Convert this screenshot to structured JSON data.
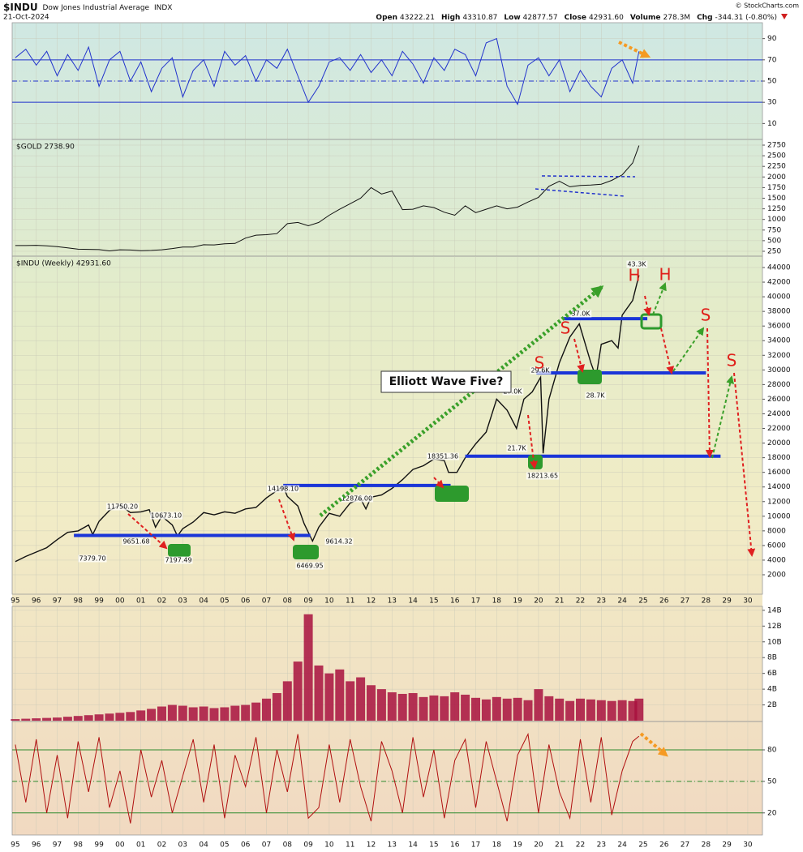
{
  "header": {
    "symbol": "$INDU",
    "name": "Dow Jones Industrial Average",
    "exchange": "INDX",
    "date": "21-Oct-2024",
    "quote": [
      {
        "label": "Open",
        "value": "43222.21"
      },
      {
        "label": "High",
        "value": "43310.87"
      },
      {
        "label": "Low",
        "value": "42877.57"
      },
      {
        "label": "Close",
        "value": "42931.60"
      },
      {
        "label": "Volume",
        "value": "278.3M"
      },
      {
        "label": "Chg",
        "value": "-344.31 (-0.80%)"
      }
    ],
    "credit": "© StockCharts.com"
  },
  "chart_data": [
    {
      "type": "line",
      "xlim": [
        1994.85,
        2030.7
      ],
      "ylim": [
        -5,
        105
      ],
      "yticks": [
        10,
        30,
        50,
        70,
        90
      ],
      "hlines": [
        30,
        50,
        70
      ],
      "hline_color": "#2233cc",
      "x": [
        1995,
        1995.5,
        1996,
        1996.5,
        1997,
        1997.5,
        1998,
        1998.5,
        1999,
        1999.5,
        2000,
        2000.5,
        2001,
        2001.5,
        2002,
        2002.5,
        2003,
        2003.5,
        2004,
        2004.5,
        2005,
        2005.5,
        2006,
        2006.5,
        2007,
        2007.5,
        2008,
        2008.5,
        2009,
        2009.5,
        2010,
        2010.5,
        2011,
        2011.5,
        2012,
        2012.5,
        2013,
        2013.5,
        2014,
        2014.5,
        2015,
        2015.5,
        2016,
        2016.5,
        2017,
        2017.5,
        2018,
        2018.5,
        2019,
        2019.5,
        2020,
        2020.5,
        2021,
        2021.5,
        2022,
        2022.5,
        2023,
        2023.5,
        2024,
        2024.5,
        2024.8
      ],
      "series": [
        {
          "color": "#2233cc",
          "values": [
            72,
            80,
            65,
            78,
            55,
            75,
            60,
            82,
            45,
            70,
            78,
            50,
            68,
            40,
            62,
            72,
            35,
            60,
            70,
            45,
            78,
            65,
            74,
            50,
            70,
            62,
            80,
            55,
            30,
            45,
            68,
            72,
            60,
            75,
            58,
            70,
            55,
            78,
            66,
            48,
            72,
            60,
            80,
            75,
            55,
            86,
            90,
            45,
            28,
            65,
            72,
            55,
            70,
            40,
            60,
            45,
            35,
            62,
            70,
            48,
            78
          ]
        }
      ]
    },
    {
      "type": "line",
      "legend": "$GOLD 2738.90",
      "xlim": [
        1994.85,
        2030.7
      ],
      "ylim": [
        135,
        2884
      ],
      "yticks": [
        250,
        500,
        750,
        1000,
        1250,
        1500,
        1750,
        2000,
        2250,
        2500,
        2750
      ],
      "x": [
        1995,
        1995.5,
        1996,
        1996.5,
        1997,
        1997.5,
        1998,
        1998.5,
        1999,
        1999.5,
        2000,
        2000.5,
        2001,
        2001.5,
        2002,
        2002.5,
        2003,
        2003.5,
        2004,
        2004.5,
        2005,
        2005.5,
        2006,
        2006.5,
        2007,
        2007.5,
        2008,
        2008.5,
        2009,
        2009.5,
        2010,
        2010.5,
        2011,
        2011.5,
        2012,
        2012.5,
        2013,
        2013.5,
        2014,
        2014.5,
        2015,
        2015.5,
        2016,
        2016.5,
        2017,
        2017.5,
        2018,
        2018.5,
        2019,
        2019.5,
        2020,
        2020.5,
        2021,
        2021.5,
        2022,
        2022.5,
        2023,
        2023.5,
        2024,
        2024.5,
        2024.8
      ],
      "series": [
        {
          "color": "#111111",
          "values": [
            385,
            385,
            390,
            380,
            360,
            330,
            300,
            295,
            290,
            260,
            285,
            280,
            265,
            270,
            285,
            315,
            350,
            350,
            405,
            400,
            425,
            435,
            560,
            630,
            640,
            665,
            900,
            930,
            850,
            930,
            1100,
            1240,
            1370,
            1500,
            1750,
            1600,
            1670,
            1230,
            1240,
            1320,
            1280,
            1170,
            1100,
            1320,
            1160,
            1240,
            1320,
            1250,
            1290,
            1410,
            1520,
            1780,
            1900,
            1770,
            1800,
            1810,
            1830,
            1920,
            2050,
            2330,
            2738.9
          ]
        }
      ]
    },
    {
      "type": "line",
      "legend": "$INDU (Weekly) 42931.60",
      "xlim": [
        1994.85,
        2030.7
      ],
      "ylim": [
        -660,
        45551
      ],
      "yticks": [
        2000,
        4000,
        6000,
        8000,
        10000,
        12000,
        14000,
        16000,
        18000,
        20000,
        22000,
        24000,
        26000,
        28000,
        30000,
        32000,
        34000,
        36000,
        38000,
        40000,
        42000,
        44000
      ],
      "xticks": [
        {
          "value": 1995,
          "label": "95"
        },
        {
          "value": 1996,
          "label": "96"
        },
        {
          "value": 1997,
          "label": "97"
        },
        {
          "value": 1998,
          "label": "98"
        },
        {
          "value": 1999,
          "label": "99"
        },
        {
          "value": 2000,
          "label": "00"
        },
        {
          "value": 2001,
          "label": "01"
        },
        {
          "value": 2002,
          "label": "02"
        },
        {
          "value": 2003,
          "label": "03"
        },
        {
          "value": 2004,
          "label": "04"
        },
        {
          "value": 2005,
          "label": "05"
        },
        {
          "value": 2006,
          "label": "06"
        },
        {
          "value": 2007,
          "label": "07"
        },
        {
          "value": 2008,
          "label": "08"
        },
        {
          "value": 2009,
          "label": "09"
        },
        {
          "value": 2010,
          "label": "10"
        },
        {
          "value": 2011,
          "label": "11"
        },
        {
          "value": 2012,
          "label": "12"
        },
        {
          "value": 2013,
          "label": "13"
        },
        {
          "value": 2014,
          "label": "14"
        },
        {
          "value": 2015,
          "label": "15"
        },
        {
          "value": 2016,
          "label": "16"
        },
        {
          "value": 2017,
          "label": "17"
        },
        {
          "value": 2018,
          "label": "18"
        },
        {
          "value": 2019,
          "label": "19"
        },
        {
          "value": 2020,
          "label": "20"
        },
        {
          "value": 2021,
          "label": "21"
        },
        {
          "value": 2022,
          "label": "22"
        },
        {
          "value": 2023,
          "label": "23"
        },
        {
          "value": 2024,
          "label": "24"
        },
        {
          "value": 2025,
          "label": "25"
        },
        {
          "value": 2026,
          "label": "26"
        },
        {
          "value": 2027,
          "label": "27"
        },
        {
          "value": 2028,
          "label": "28"
        },
        {
          "value": 2029,
          "label": "29"
        },
        {
          "value": 2030,
          "label": "30"
        }
      ],
      "grid": true,
      "x": [
        1995,
        1995.5,
        1996,
        1996.5,
        1997,
        1997.5,
        1998,
        1998.5,
        1998.7,
        1999,
        1999.5,
        2000,
        2000.5,
        2001,
        2001.4,
        2001.7,
        2002,
        2002.5,
        2002.75,
        2003,
        2003.5,
        2004,
        2004.5,
        2005,
        2005.5,
        2006,
        2006.5,
        2007,
        2007.5,
        2007.8,
        2008,
        2008.5,
        2008.8,
        2009.2,
        2009.5,
        2010,
        2010.5,
        2011,
        2011.5,
        2011.75,
        2012,
        2012.5,
        2013,
        2013.5,
        2014,
        2014.5,
        2015,
        2015.5,
        2015.7,
        2016.1,
        2016.5,
        2017,
        2017.5,
        2018,
        2018.5,
        2018.95,
        2019.3,
        2019.7,
        2020.1,
        2020.22,
        2020.5,
        2021,
        2021.5,
        2021.95,
        2022.5,
        2022.75,
        2023,
        2023.5,
        2023.8,
        2024,
        2024.5,
        2024.8
      ],
      "series": [
        {
          "color": "#111111",
          "values": [
            3800,
            4500,
            5100,
            5700,
            6800,
            7800,
            8000,
            8800,
            7500,
            9300,
            10800,
            11500,
            10500,
            10600,
            10900,
            8500,
            10000,
            8800,
            7300,
            8300,
            9200,
            10500,
            10200,
            10600,
            10400,
            11000,
            11200,
            12500,
            13500,
            14100,
            12700,
            11400,
            9000,
            6600,
            8500,
            10400,
            10000,
            11800,
            12400,
            11000,
            12600,
            12900,
            13800,
            15000,
            16400,
            16900,
            17800,
            17600,
            16000,
            16000,
            18000,
            19900,
            21500,
            26000,
            24500,
            22000,
            26000,
            27000,
            29000,
            18600,
            26000,
            31000,
            34500,
            36300,
            31000,
            29000,
            33500,
            34000,
            33000,
            37500,
            39500,
            42931.6
          ]
        }
      ],
      "levels": [
        7379.7,
        14198.1,
        18213.65,
        29600,
        37000
      ],
      "level_color": "#1a35d8",
      "point_labels": [
        "43.3K",
        "37.0K",
        "29.6K",
        "27.0K",
        "28.7K",
        "21.7K",
        "18213.65",
        "18351.36",
        "12876.00",
        "14198.10",
        "9614.32",
        "6469.95",
        "11750.20",
        "10673.10",
        "9651.68",
        "7197.49",
        "7379.70"
      ],
      "pattern_labels": [
        "H",
        "H",
        "S",
        "S",
        "S",
        "S"
      ],
      "annotation": "Elliott Wave Five?"
    },
    {
      "type": "bar",
      "xlim": [
        1994.85,
        2030.7
      ],
      "ylim": [
        -100000000.0,
        14500000000.0
      ],
      "yticks": [
        {
          "value": 2000000000.0,
          "label": "2B"
        },
        {
          "value": 4000000000.0,
          "label": "4B"
        },
        {
          "value": 6000000000.0,
          "label": "6B"
        },
        {
          "value": 8000000000.0,
          "label": "8B"
        },
        {
          "value": 10000000000.0,
          "label": "10B"
        },
        {
          "value": 12000000000.0,
          "label": "12B"
        },
        {
          "value": 14000000000.0,
          "label": "14B"
        }
      ],
      "color": "#a8103e",
      "x": [
        1995,
        1995.5,
        1996,
        1996.5,
        1997,
        1997.5,
        1998,
        1998.5,
        1999,
        1999.5,
        2000,
        2000.5,
        2001,
        2001.5,
        2002,
        2002.5,
        2003,
        2003.5,
        2004,
        2004.5,
        2005,
        2005.5,
        2006,
        2006.5,
        2007,
        2007.5,
        2008,
        2008.5,
        2009,
        2009.5,
        2010,
        2010.5,
        2011,
        2011.5,
        2012,
        2012.5,
        2013,
        2013.5,
        2014,
        2014.5,
        2015,
        2015.5,
        2016,
        2016.5,
        2017,
        2017.5,
        2018,
        2018.5,
        2019,
        2019.5,
        2020,
        2020.5,
        2021,
        2021.5,
        2022,
        2022.5,
        2023,
        2023.5,
        2024,
        2024.5,
        2024.8
      ],
      "values": [
        200000000.0,
        250000000.0,
        300000000.0,
        350000000.0,
        400000000.0,
        500000000.0,
        600000000.0,
        700000000.0,
        800000000.0,
        900000000.0,
        1000000000.0,
        1100000000.0,
        1300000000.0,
        1500000000.0,
        1800000000.0,
        2000000000.0,
        1900000000.0,
        1700000000.0,
        1800000000.0,
        1600000000.0,
        1700000000.0,
        1900000000.0,
        2000000000.0,
        2300000000.0,
        2800000000.0,
        3500000000.0,
        5000000000.0,
        7500000000.0,
        13500000000.0,
        7000000000.0,
        6000000000.0,
        6500000000.0,
        5000000000.0,
        5500000000.0,
        4500000000.0,
        4000000000.0,
        3600000000.0,
        3400000000.0,
        3500000000.0,
        3000000000.0,
        3200000000.0,
        3100000000.0,
        3600000000.0,
        3300000000.0,
        2900000000.0,
        2700000000.0,
        3000000000.0,
        2800000000.0,
        2900000000.0,
        2600000000.0,
        4000000000.0,
        3100000000.0,
        2800000000.0,
        2500000000.0,
        2800000000.0,
        2700000000.0,
        2600000000.0,
        2500000000.0,
        2600000000.0,
        2500000000.0,
        2800000000.0
      ]
    },
    {
      "type": "line",
      "xlim": [
        1994.85,
        2030.7
      ],
      "ylim": [
        -1,
        107
      ],
      "yticks": [
        20,
        50,
        80
      ],
      "hlines": [
        20,
        50,
        80
      ],
      "hline_color": "#2e8b2e",
      "x": [
        1995,
        1995.5,
        1996,
        1996.5,
        1997,
        1997.5,
        1998,
        1998.5,
        1999,
        1999.5,
        2000,
        2000.5,
        2001,
        2001.5,
        2002,
        2002.5,
        2003,
        2003.5,
        2004,
        2004.5,
        2005,
        2005.5,
        2006,
        2006.5,
        2007,
        2007.5,
        2008,
        2008.5,
        2009,
        2009.5,
        2010,
        2010.5,
        2011,
        2011.5,
        2012,
        2012.5,
        2013,
        2013.5,
        2014,
        2014.5,
        2015,
        2015.5,
        2016,
        2016.5,
        2017,
        2017.5,
        2018,
        2018.5,
        2019,
        2019.5,
        2020,
        2020.5,
        2021,
        2021.5,
        2022,
        2022.5,
        2023,
        2023.5,
        2024,
        2024.5,
        2024.8
      ],
      "series": [
        {
          "color": "#b01010",
          "values": [
            85,
            30,
            90,
            20,
            75,
            15,
            88,
            40,
            92,
            25,
            60,
            10,
            80,
            35,
            70,
            20,
            55,
            90,
            30,
            85,
            15,
            75,
            45,
            92,
            20,
            80,
            40,
            95,
            15,
            25,
            85,
            30,
            90,
            45,
            12,
            88,
            60,
            20,
            92,
            35,
            80,
            15,
            70,
            90,
            25,
            88,
            50,
            12,
            75,
            95,
            20,
            85,
            40,
            15,
            90,
            30,
            92,
            18,
            60,
            88,
            93
          ]
        }
      ]
    }
  ]
}
